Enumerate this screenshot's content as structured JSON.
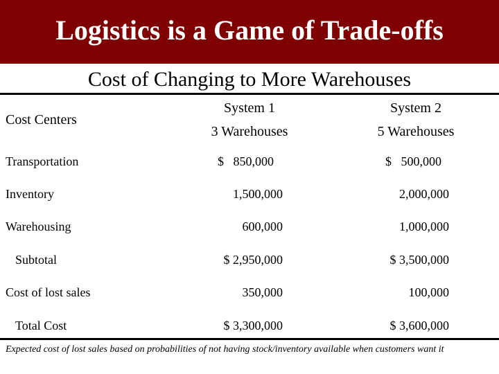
{
  "banner": {
    "title": "Logistics is a Game of Trade-offs",
    "color": "#7f0000"
  },
  "subtitle": "Cost of Changing to More Warehouses",
  "table": {
    "header": {
      "label": "Cost Centers",
      "system1_line1": "System 1",
      "system1_line2": "3 Warehouses",
      "system2_line1": "System 2",
      "system2_line2": "5 Warehouses"
    },
    "rows": [
      {
        "label": "Transportation",
        "s1": "$   850,000",
        "s2": "$   500,000"
      },
      {
        "label": "Inventory",
        "s1": "1,500,000",
        "s2": "2,000,000"
      },
      {
        "label": "Warehousing",
        "s1": "600,000",
        "s2": "1,000,000"
      },
      {
        "label": "Subtotal",
        "s1": "$ 2,950,000",
        "s2": "$ 3,500,000"
      },
      {
        "label": "Cost of lost sales",
        "s1": "350,000",
        "s2": "100,000"
      },
      {
        "label": "Total Cost",
        "s1": "$ 3,300,000",
        "s2": "$ 3,600,000"
      }
    ]
  },
  "footnote": "Expected cost of lost sales based on probabilities of not having stock/inventory available when customers want it"
}
